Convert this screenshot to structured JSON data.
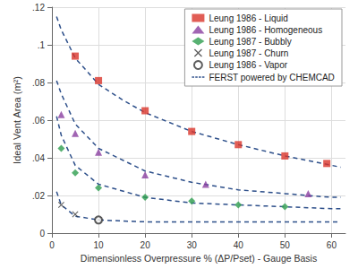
{
  "chart_data": {
    "type": "scatter",
    "x_label": "Dimensionless Overpressure % (ΔP/Pset) - Gauge Basis",
    "y_label": "Ideal Vent Area (m²)",
    "xlim": [
      0,
      63
    ],
    "xticks": [
      0,
      10,
      20,
      30,
      40,
      50,
      60
    ],
    "ylim": [
      0,
      0.12
    ],
    "yticks": [
      {
        "value": 0,
        "label": "0"
      },
      {
        "value": 0.02,
        "label": ".02"
      },
      {
        "value": 0.04,
        "label": ".04"
      },
      {
        "value": 0.06,
        "label": ".06"
      },
      {
        "value": 0.08,
        "label": ".08"
      },
      {
        "value": 0.1,
        "label": ".1"
      },
      {
        "value": 0.12,
        "label": ".12"
      }
    ],
    "grid": true,
    "legend": "upper right",
    "series": [
      {
        "name": "Leung 1986 - Liquid",
        "type": "scatter",
        "marker": "square",
        "color": "#d9342b",
        "x": [
          5,
          10,
          20,
          30,
          40,
          50,
          59
        ],
        "values": [
          0.094,
          0.081,
          0.065,
          0.054,
          0.047,
          0.041,
          0.037
        ]
      },
      {
        "name": "Leung 1986 - Homogeneous",
        "type": "scatter",
        "marker": "triangle",
        "color": "#8a3fa0",
        "x": [
          2,
          5,
          10,
          20,
          33,
          55
        ],
        "values": [
          0.063,
          0.053,
          0.043,
          0.031,
          0.026,
          0.021
        ]
      },
      {
        "name": "Leung 1987 - Bubbly",
        "type": "scatter",
        "marker": "diamond",
        "color": "#2e9e4f",
        "x": [
          2,
          5,
          10,
          20,
          30,
          40,
          50
        ],
        "values": [
          0.045,
          0.032,
          0.024,
          0.019,
          0.017,
          0.015,
          0.014
        ]
      },
      {
        "name": "Leung 1987 - Churn",
        "type": "scatter",
        "marker": "x",
        "color": "#333333",
        "x": [
          2,
          5,
          10
        ],
        "values": [
          0.015,
          0.01,
          0.007
        ]
      },
      {
        "name": "Leung 1986 - Vapor",
        "type": "scatter",
        "marker": "circle_open",
        "color": "#333333",
        "x": [
          10
        ],
        "values": [
          0.007
        ]
      },
      {
        "name": "FERST powered by CHEMCAD",
        "type": "line",
        "line_style": "dashed",
        "color": "#2d4f8a",
        "x": [
          1,
          2,
          5,
          10,
          15,
          20,
          30,
          40,
          50,
          60,
          62,
          null,
          1,
          2,
          5,
          10,
          20,
          30,
          40,
          50,
          60,
          62,
          null,
          1,
          2,
          5,
          10,
          20,
          30,
          40,
          50,
          60,
          62,
          null,
          1,
          2,
          5,
          10,
          20,
          30,
          40,
          50,
          60,
          62
        ],
        "values": [
          0.115,
          0.108,
          0.093,
          0.079,
          0.071,
          0.064,
          0.054,
          0.047,
          0.041,
          0.036,
          0.035,
          null,
          0.081,
          0.074,
          0.058,
          0.045,
          0.033,
          0.027,
          0.023,
          0.021,
          0.019,
          0.019,
          null,
          0.062,
          0.052,
          0.036,
          0.026,
          0.019,
          0.016,
          0.015,
          0.014,
          0.013,
          0.013,
          null,
          0.022,
          0.015,
          0.009,
          0.007,
          0.006,
          0.006,
          0.006,
          0.006,
          0.006,
          0.006
        ]
      }
    ]
  }
}
